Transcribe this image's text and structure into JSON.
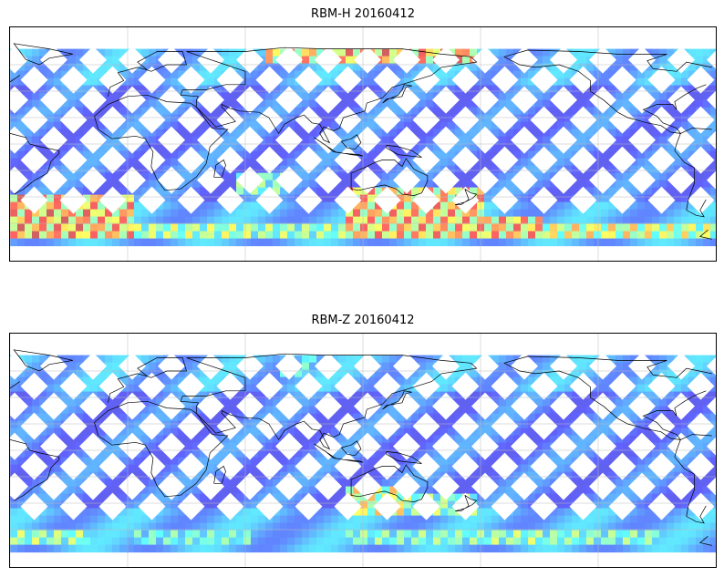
{
  "panels": [
    {
      "title": "RBM-H 20160412",
      "colormap": "jet",
      "grid": true,
      "coastlines": true,
      "band_lat": [
        -72,
        72
      ],
      "swath_color": "#6f6ff2",
      "hot_regions": [
        {
          "lon": [
            70,
            110
          ],
          "lat": [
            60,
            72
          ],
          "level": 0.85
        },
        {
          "lon": [
            110,
            175
          ],
          "lat": [
            60,
            72
          ],
          "level": 0.95
        },
        {
          "lon": [
            -60,
            -20
          ],
          "lat": [
            -72,
            -40
          ],
          "level": 0.95
        },
        {
          "lon": [
            -20,
            0
          ],
          "lat": [
            -72,
            -40
          ],
          "level": 0.9
        },
        {
          "lon": [
            -180,
            -150
          ],
          "lat": [
            -72,
            -55
          ],
          "level": 0.9
        },
        {
          "lon": [
            -150,
            -90
          ],
          "lat": [
            -72,
            -60
          ],
          "level": 0.75
        },
        {
          "lon": [
            -90,
            -30
          ],
          "lat": [
            -72,
            -62
          ],
          "level": 0.7
        },
        {
          "lon": [
            -30,
            0
          ],
          "lat": [
            -72,
            -62
          ],
          "level": 0.7
        },
        {
          "lon": [
            0,
            60
          ],
          "lat": [
            -72,
            -62
          ],
          "level": 0.65
        },
        {
          "lon": [
            60,
            110
          ],
          "lat": [
            -72,
            -62
          ],
          "level": 0.6
        },
        {
          "lon": [
            110,
            180
          ],
          "lat": [
            -72,
            -35
          ],
          "level": 0.9
        },
        {
          "lon": [
            55,
            80
          ],
          "lat": [
            -40,
            -20
          ],
          "level": 0.55
        },
        {
          "lon": [
            -30,
            0
          ],
          "lat": [
            -72,
            -60
          ],
          "level": 0.6
        }
      ]
    },
    {
      "title": "RBM-Z 20160412",
      "colormap": "jet",
      "grid": true,
      "coastlines": true,
      "band_lat": [
        -72,
        72
      ],
      "swath_color": "#6f6ff2",
      "hot_regions": [
        {
          "lon": [
            110,
            140
          ],
          "lat": [
            -50,
            -28
          ],
          "level": 0.75
        },
        {
          "lon": [
            140,
            175
          ],
          "lat": [
            -50,
            -35
          ],
          "level": 0.6
        },
        {
          "lon": [
            -180,
            -150
          ],
          "lat": [
            -72,
            -60
          ],
          "level": 0.6
        },
        {
          "lon": [
            -150,
            -90
          ],
          "lat": [
            -72,
            -62
          ],
          "level": 0.55
        },
        {
          "lon": [
            -60,
            -20
          ],
          "lat": [
            -72,
            -62
          ],
          "level": 0.6
        },
        {
          "lon": [
            75,
            95
          ],
          "lat": [
            55,
            72
          ],
          "level": 0.45
        },
        {
          "lon": [
            110,
            180
          ],
          "lat": [
            -72,
            -62
          ],
          "level": 0.55
        },
        {
          "lon": [
            0,
            60
          ],
          "lat": [
            -72,
            -62
          ],
          "level": 0.5
        }
      ]
    }
  ]
}
